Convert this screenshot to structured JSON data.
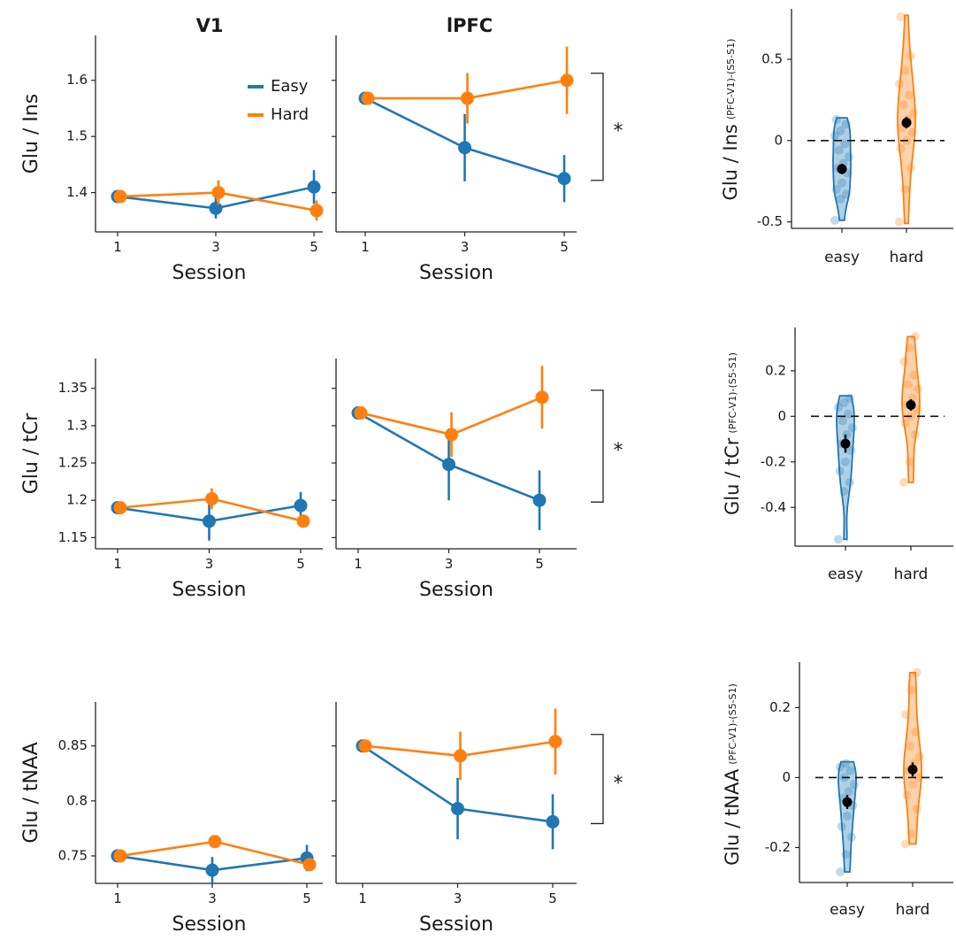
{
  "colors": {
    "easy": "#1f77b4",
    "hard": "#ff7f0e",
    "mean": "#000000"
  },
  "column_titles": [
    "V1",
    "lPFC"
  ],
  "legend": {
    "easy": "Easy",
    "hard": "Hard"
  },
  "significance_marker": "*",
  "chart_data": [
    {
      "id": "glu-ins",
      "type": "line",
      "ylabel": "Glu / Ins",
      "ylim": [
        1.33,
        1.68
      ],
      "yticks": [
        1.4,
        1.5,
        1.6
      ],
      "ytick_labels": [
        "1.4",
        "1.5",
        "1.6"
      ],
      "panels": [
        {
          "region": "V1",
          "xlabel": "Session",
          "x": [
            1,
            3,
            5
          ],
          "series": [
            {
              "name": "Easy",
              "key": "easy",
              "values": [
                1.393,
                1.372,
                1.41
              ],
              "err": [
                0.0,
                0.018,
                0.03
              ]
            },
            {
              "name": "Hard",
              "key": "hard",
              "values": [
                1.393,
                1.4,
                1.368
              ],
              "err": [
                0.0,
                0.022,
                0.018
              ]
            }
          ],
          "significance": false
        },
        {
          "region": "lPFC",
          "xlabel": "Session",
          "x": [
            1,
            3,
            5
          ],
          "series": [
            {
              "name": "Easy",
              "key": "easy",
              "values": [
                1.568,
                1.48,
                1.425
              ],
              "err": [
                0.0,
                0.06,
                0.042
              ]
            },
            {
              "name": "Hard",
              "key": "hard",
              "values": [
                1.568,
                1.568,
                1.6
              ],
              "err": [
                0.0,
                0.045,
                0.06
              ]
            }
          ],
          "significance": true
        }
      ],
      "violin": {
        "ylabel": "Glu / Ins",
        "ylabel_sub": "(PFC-V1)-(S5-S1)",
        "categories": [
          "easy",
          "hard"
        ],
        "ylim": [
          -0.54,
          0.81
        ],
        "yticks": [
          -0.5,
          0,
          0.5
        ],
        "ytick_labels": [
          "-0.5",
          "0",
          "0.5"
        ],
        "means": [
          -0.175,
          0.11
        ],
        "mean_err": [
          0.032,
          0.035
        ],
        "ranges": [
          [
            -0.49,
            0.14
          ],
          [
            -0.51,
            0.77
          ]
        ],
        "points": [
          [
            -0.49,
            -0.36,
            -0.33,
            -0.3,
            -0.26,
            -0.2,
            -0.17,
            -0.14,
            -0.1,
            -0.06,
            -0.02,
            0.03,
            0.06,
            0.1,
            0.13
          ],
          [
            -0.5,
            -0.3,
            -0.17,
            -0.05,
            0.0,
            0.05,
            0.08,
            0.13,
            0.17,
            0.22,
            0.28,
            0.35,
            0.43,
            0.52,
            0.76
          ]
        ]
      }
    },
    {
      "id": "glu-tcr",
      "type": "line",
      "ylabel": "Glu / tCr",
      "ylim": [
        1.135,
        1.39
      ],
      "yticks": [
        1.15,
        1.2,
        1.25,
        1.3,
        1.35
      ],
      "ytick_labels": [
        "1.15",
        "1.2",
        "1.25",
        "1.3",
        "1.35"
      ],
      "panels": [
        {
          "region": "V1",
          "xlabel": "Session",
          "x": [
            1,
            3,
            5
          ],
          "series": [
            {
              "name": "Easy",
              "key": "easy",
              "values": [
                1.19,
                1.172,
                1.193
              ],
              "err": [
                0.0,
                0.026,
                0.018
              ]
            },
            {
              "name": "Hard",
              "key": "hard",
              "values": [
                1.19,
                1.202,
                1.172
              ],
              "err": [
                0.0,
                0.014,
                0.008
              ]
            }
          ],
          "significance": false
        },
        {
          "region": "lPFC",
          "xlabel": "Session",
          "x": [
            1,
            3,
            5
          ],
          "series": [
            {
              "name": "Easy",
              "key": "easy",
              "values": [
                1.317,
                1.248,
                1.2
              ],
              "err": [
                0.0,
                0.048,
                0.04
              ]
            },
            {
              "name": "Hard",
              "key": "hard",
              "values": [
                1.317,
                1.288,
                1.338
              ],
              "err": [
                0.0,
                0.03,
                0.042
              ]
            }
          ],
          "significance": true
        }
      ],
      "violin": {
        "ylabel": "Glu / tCr",
        "ylabel_sub": "(PFC-V1)-(S5-S1)",
        "categories": [
          "easy",
          "hard"
        ],
        "ylim": [
          -0.57,
          0.39
        ],
        "yticks": [
          -0.4,
          -0.2,
          0,
          0.2
        ],
        "ytick_labels": [
          "-0.4",
          "-0.2",
          "0",
          "0.2"
        ],
        "means": [
          -0.12,
          0.05
        ],
        "mean_err": [
          0.04,
          0.025
        ],
        "ranges": [
          [
            -0.54,
            0.09
          ],
          [
            -0.29,
            0.35
          ]
        ],
        "points": [
          [
            -0.54,
            -0.33,
            -0.29,
            -0.24,
            -0.2,
            -0.15,
            -0.12,
            -0.08,
            -0.05,
            -0.02,
            0.01,
            0.04,
            0.06,
            0.08
          ],
          [
            -0.29,
            -0.2,
            -0.08,
            -0.03,
            0.0,
            0.03,
            0.05,
            0.08,
            0.12,
            0.14,
            0.18,
            0.24,
            0.3,
            0.35
          ]
        ]
      }
    },
    {
      "id": "glu-tnaa",
      "type": "line",
      "ylabel": "Glu / tNAA",
      "ylim": [
        0.725,
        0.89
      ],
      "yticks": [
        0.75,
        0.8,
        0.85
      ],
      "ytick_labels": [
        "0.75",
        "0.8",
        "0.85"
      ],
      "panels": [
        {
          "region": "V1",
          "xlabel": "Session",
          "x": [
            1,
            3,
            5
          ],
          "series": [
            {
              "name": "Easy",
              "key": "easy",
              "values": [
                0.75,
                0.737,
                0.748
              ],
              "err": [
                0.0,
                0.012,
                0.012
              ]
            },
            {
              "name": "Hard",
              "key": "hard",
              "values": [
                0.75,
                0.763,
                0.742
              ],
              "err": [
                0.0,
                0.005,
                0.005
              ]
            }
          ],
          "significance": false
        },
        {
          "region": "lPFC",
          "xlabel": "Session",
          "x": [
            1,
            3,
            5
          ],
          "series": [
            {
              "name": "Easy",
              "key": "easy",
              "values": [
                0.85,
                0.793,
                0.781
              ],
              "err": [
                0.0,
                0.028,
                0.025
              ]
            },
            {
              "name": "Hard",
              "key": "hard",
              "values": [
                0.85,
                0.841,
                0.854
              ],
              "err": [
                0.0,
                0.022,
                0.03
              ]
            }
          ],
          "significance": true
        }
      ],
      "violin": {
        "ylabel": "Glu / tNAA",
        "ylabel_sub": "(PFC-V1)-(S5-S1)",
        "categories": [
          "easy",
          "hard"
        ],
        "ylim": [
          -0.3,
          0.33
        ],
        "yticks": [
          -0.2,
          0,
          0.2
        ],
        "ytick_labels": [
          "-0.2",
          "0",
          "0.2"
        ],
        "means": [
          -0.07,
          0.023
        ],
        "mean_err": [
          0.02,
          0.02
        ],
        "ranges": [
          [
            -0.27,
            0.045
          ],
          [
            -0.19,
            0.3
          ]
        ],
        "points": [
          [
            -0.27,
            -0.22,
            -0.17,
            -0.14,
            -0.11,
            -0.08,
            -0.06,
            -0.04,
            -0.02,
            0.0,
            0.02,
            0.03,
            0.04
          ],
          [
            -0.19,
            -0.16,
            -0.09,
            -0.05,
            -0.02,
            0.0,
            0.02,
            0.04,
            0.06,
            0.09,
            0.13,
            0.18,
            0.25,
            0.3
          ]
        ]
      }
    }
  ]
}
